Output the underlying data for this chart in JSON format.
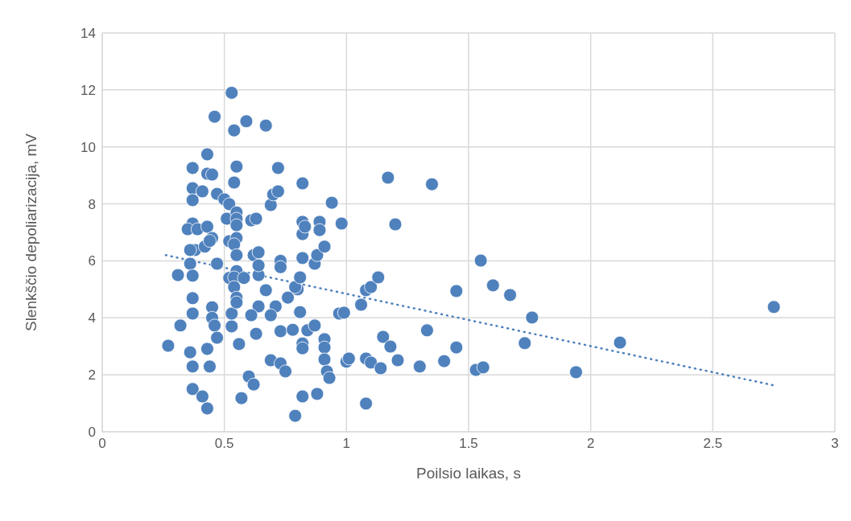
{
  "chart_data": {
    "type": "scatter",
    "xlabel": "Poilsio laikas, s",
    "ylabel": "Slenkščio depoliarizacija, mV",
    "xlim": [
      0,
      3
    ],
    "xticks": [
      0,
      0.5,
      1,
      1.5,
      2,
      2.5,
      3
    ],
    "ylim": [
      0,
      14
    ],
    "yticks": [
      0,
      2,
      4,
      6,
      8,
      10,
      12,
      14
    ],
    "grid": true,
    "marker": "circle",
    "series": [
      {
        "color": "#4f81bd",
        "x": [
          0.27,
          0.31,
          0.32,
          0.37,
          0.37,
          0.37,
          0.37,
          0.35,
          0.39,
          0.38,
          0.36,
          0.36,
          0.37,
          0.37,
          0.37,
          0.36,
          0.37,
          0.37,
          0.41,
          0.43,
          0.43,
          0.43,
          0.45,
          0.46,
          0.47,
          0.41,
          0.43,
          0.45,
          0.42,
          0.44,
          0.47,
          0.45,
          0.45,
          0.46,
          0.47,
          0.43,
          0.44,
          0.5,
          0.52,
          0.51,
          0.52,
          0.52,
          0.53,
          0.53,
          0.53,
          0.54,
          0.54,
          0.55,
          0.55,
          0.55,
          0.55,
          0.55,
          0.54,
          0.55,
          0.55,
          0.54,
          0.54,
          0.55,
          0.55,
          0.56,
          0.57,
          0.58,
          0.59,
          0.61,
          0.63,
          0.62,
          0.64,
          0.64,
          0.64,
          0.64,
          0.63,
          0.61,
          0.6,
          0.62,
          0.67,
          0.69,
          0.7,
          0.72,
          0.72,
          0.73,
          0.73,
          0.71,
          0.69,
          0.69,
          0.73,
          0.73,
          0.75,
          0.67,
          0.76,
          0.78,
          0.8,
          0.79,
          0.81,
          0.81,
          0.79,
          0.82,
          0.82,
          0.82,
          0.82,
          0.83,
          0.82,
          0.82,
          0.82,
          0.84,
          0.87,
          0.87,
          0.88,
          0.89,
          0.89,
          0.91,
          0.91,
          0.91,
          0.91,
          0.92,
          0.93,
          0.88,
          0.94,
          0.97,
          0.98,
          0.99,
          1.0,
          1.01,
          1.06,
          1.08,
          1.1,
          1.08,
          1.1,
          1.08,
          1.13,
          1.14,
          1.15,
          1.17,
          1.18,
          1.2,
          1.21,
          1.3,
          1.33,
          1.35,
          1.4,
          1.45,
          1.45,
          1.53,
          1.56,
          1.55,
          1.6,
          1.67,
          1.73,
          1.76,
          1.94,
          1.94,
          2.12,
          2.75
        ],
        "values": [
          3.02,
          5.5,
          3.73,
          9.26,
          8.55,
          8.13,
          7.31,
          7.11,
          7.11,
          6.38,
          6.38,
          5.9,
          5.48,
          4.69,
          4.15,
          2.79,
          2.29,
          1.5,
          1.24,
          0.82,
          9.74,
          9.06,
          9.03,
          11.06,
          8.35,
          8.44,
          7.2,
          6.8,
          6.5,
          6.7,
          5.9,
          4.37,
          4.0,
          3.73,
          3.3,
          2.91,
          2.29,
          8.16,
          7.99,
          7.48,
          6.69,
          5.4,
          3.7,
          4.15,
          11.9,
          10.58,
          8.75,
          9.31,
          7.7,
          7.48,
          7.25,
          6.8,
          6.58,
          6.2,
          5.64,
          5.42,
          5.08,
          4.71,
          4.54,
          3.08,
          1.18,
          5.4,
          10.9,
          7.42,
          7.48,
          6.2,
          6.3,
          5.5,
          5.84,
          4.4,
          3.44,
          4.09,
          1.94,
          1.66,
          10.75,
          7.96,
          8.33,
          8.44,
          9.26,
          6.0,
          5.78,
          4.4,
          4.09,
          2.51,
          2.4,
          3.53,
          2.12,
          4.97,
          4.71,
          3.58,
          5.0,
          5.08,
          5.42,
          4.2,
          0.56,
          7.37,
          8.72,
          6.1,
          6.94,
          7.2,
          3.1,
          2.93,
          1.24,
          3.56,
          3.73,
          5.9,
          6.2,
          7.37,
          7.08,
          6.5,
          3.25,
          2.96,
          2.54,
          2.12,
          1.89,
          1.33,
          8.04,
          4.15,
          7.31,
          4.18,
          2.46,
          2.57,
          4.46,
          4.97,
          5.08,
          2.57,
          2.43,
          0.99,
          5.42,
          2.23,
          3.33,
          8.92,
          2.99,
          7.28,
          2.51,
          2.29,
          3.56,
          8.69,
          2.48,
          4.94,
          2.96,
          2.17,
          2.26,
          6.01,
          5.14,
          4.8,
          3.11,
          4.01,
          2.09,
          2.09,
          3.13,
          4.38
        ]
      },
      {
        "type": "line",
        "color": "#4f81bd",
        "marker": "none",
        "line_style": "dotted",
        "x": [
          0.26,
          2.75
        ],
        "values": [
          6.2,
          1.63
        ]
      }
    ]
  }
}
